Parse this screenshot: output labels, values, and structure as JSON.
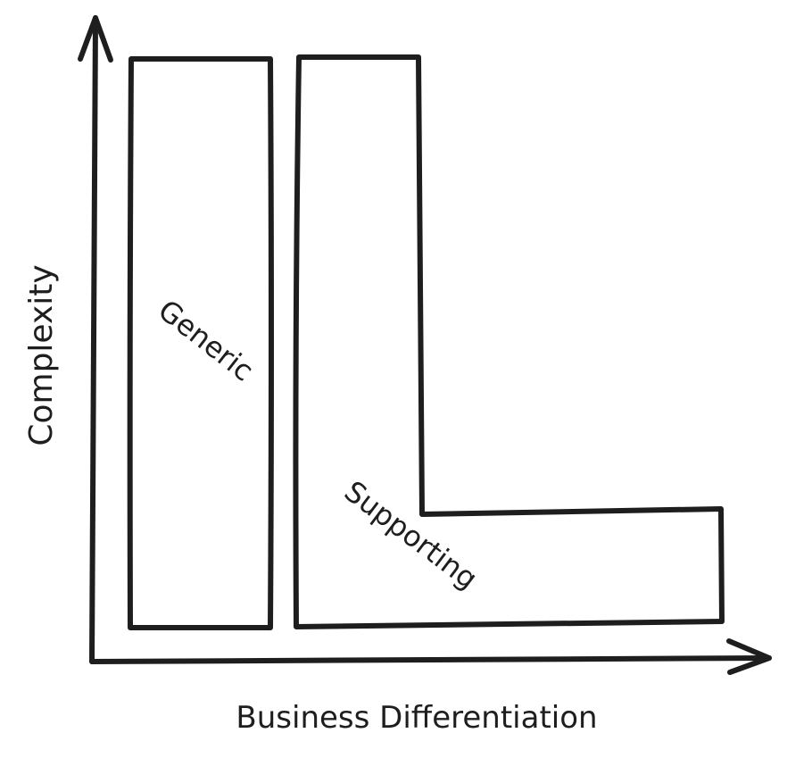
{
  "axes": {
    "y_label": "Complexity",
    "x_label": "Business Differentiation"
  },
  "regions": {
    "generic": "Generic",
    "supporting": "Supporting"
  },
  "colors": {
    "ink": "#1e1e1e",
    "background": "#ffffff"
  }
}
